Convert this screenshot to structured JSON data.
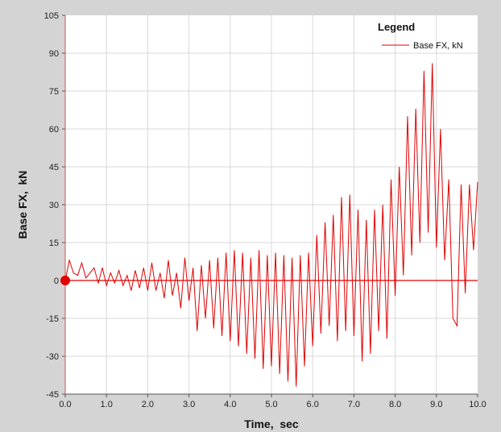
{
  "chart_data": {
    "type": "line",
    "title": "",
    "xlabel": "Time,  sec",
    "ylabel": "Base FX,  kN",
    "xlim": [
      0,
      10
    ],
    "ylim": [
      -45,
      105
    ],
    "x_ticks": [
      "0.0",
      "1.0",
      "2.0",
      "3.0",
      "4.0",
      "5.0",
      "6.0",
      "7.0",
      "8.0",
      "9.0",
      "10.0"
    ],
    "y_ticks": [
      "105",
      "90",
      "75",
      "60",
      "45",
      "30",
      "15",
      "0",
      "-15",
      "-30",
      "-45"
    ],
    "grid": true,
    "legend": {
      "title": "Legend",
      "position": "top-right"
    },
    "colors": {
      "series": "#e00000",
      "zero_line": "#e00000",
      "marker": "#e00000",
      "plot_bg": "#ffffff",
      "frame_bg": "#d4d4d4",
      "grid": "#d8d8d8"
    },
    "cursor_marker": {
      "x": 0.0,
      "y": 0.0
    },
    "series": [
      {
        "name": "Base FX, kN",
        "x": [
          0.0,
          0.1,
          0.2,
          0.3,
          0.4,
          0.5,
          0.6,
          0.7,
          0.8,
          0.9,
          1.0,
          1.1,
          1.2,
          1.3,
          1.4,
          1.5,
          1.6,
          1.7,
          1.8,
          1.9,
          2.0,
          2.1,
          2.2,
          2.3,
          2.4,
          2.5,
          2.6,
          2.7,
          2.8,
          2.9,
          3.0,
          3.1,
          3.2,
          3.3,
          3.4,
          3.5,
          3.6,
          3.7,
          3.8,
          3.9,
          4.0,
          4.1,
          4.2,
          4.3,
          4.4,
          4.5,
          4.6,
          4.7,
          4.8,
          4.9,
          5.0,
          5.1,
          5.2,
          5.3,
          5.4,
          5.5,
          5.6,
          5.7,
          5.8,
          5.9,
          6.0,
          6.1,
          6.2,
          6.3,
          6.4,
          6.5,
          6.6,
          6.7,
          6.8,
          6.9,
          7.0,
          7.1,
          7.2,
          7.3,
          7.4,
          7.5,
          7.6,
          7.7,
          7.8,
          7.9,
          8.0,
          8.1,
          8.2,
          8.3,
          8.4,
          8.5,
          8.6,
          8.7,
          8.8,
          8.9,
          9.0,
          9.1,
          9.2,
          9.3,
          9.4,
          9.5,
          9.6,
          9.7,
          9.8,
          9.9,
          10.0
        ],
        "values": [
          0,
          8,
          3,
          2,
          7,
          1,
          3,
          5,
          -1,
          5,
          -2,
          3,
          -1,
          4,
          -2,
          2,
          -4,
          4,
          -3,
          5,
          -4,
          7,
          -4,
          3,
          -7,
          8,
          -6,
          3,
          -11,
          9,
          -8,
          5,
          -20,
          6,
          -15,
          8,
          -19,
          9,
          -22,
          11,
          -24,
          12,
          -26,
          11,
          -29,
          9,
          -31,
          12,
          -35,
          10,
          -34,
          11,
          -37,
          10,
          -40,
          9,
          -42,
          10,
          -34,
          11,
          -26,
          18,
          -21,
          23,
          -18,
          26,
          -24,
          33,
          -20,
          34,
          -22,
          28,
          -32,
          24,
          -29,
          28,
          -20,
          30,
          -23,
          40,
          -6,
          45,
          2,
          65,
          10,
          68,
          15,
          83,
          19,
          86,
          13,
          60,
          8,
          40,
          -15,
          -18,
          38,
          -5,
          38,
          12,
          39
        ]
      }
    ]
  }
}
